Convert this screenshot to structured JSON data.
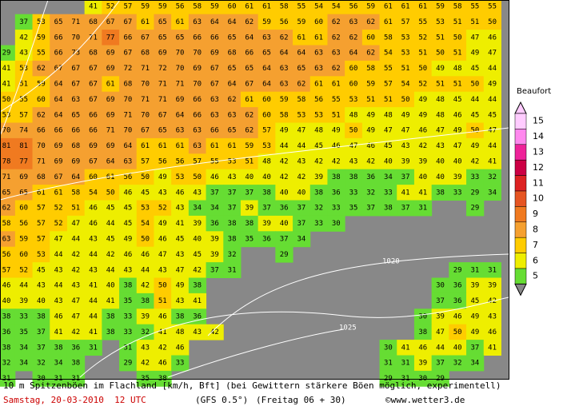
{
  "map": {
    "grid": [
      [
        null,
        null,
        null,
        null,
        null,
        41,
        52,
        57,
        59,
        59,
        56,
        58,
        59,
        60,
        61,
        61,
        58,
        55,
        54,
        54,
        56,
        59,
        61,
        61,
        61,
        59,
        58,
        55,
        55
      ],
      [
        null,
        37,
        53,
        65,
        71,
        68,
        67,
        67,
        61,
        65,
        61,
        63,
        64,
        64,
        62,
        59,
        56,
        59,
        60,
        62,
        63,
        62,
        61,
        57,
        55,
        53,
        51,
        51,
        50
      ],
      [
        null,
        42,
        59,
        66,
        70,
        71,
        77,
        66,
        67,
        65,
        65,
        66,
        66,
        65,
        64,
        63,
        62,
        61,
        61,
        62,
        62,
        60,
        58,
        53,
        52,
        51,
        50,
        47,
        46
      ],
      [
        29,
        43,
        55,
        66,
        73,
        68,
        69,
        67,
        68,
        69,
        70,
        70,
        69,
        68,
        66,
        65,
        64,
        64,
        63,
        63,
        64,
        62,
        54,
        53,
        51,
        50,
        51,
        49,
        47
      ],
      [
        41,
        53,
        62,
        67,
        67,
        67,
        69,
        72,
        71,
        72,
        70,
        69,
        67,
        65,
        65,
        64,
        63,
        65,
        63,
        62,
        60,
        58,
        55,
        51,
        50,
        49,
        48,
        45,
        44
      ],
      [
        41,
        51,
        59,
        64,
        67,
        67,
        61,
        68,
        70,
        71,
        71,
        70,
        67,
        64,
        67,
        64,
        63,
        62,
        61,
        61,
        60,
        59,
        57,
        54,
        52,
        51,
        51,
        50,
        49
      ],
      [
        50,
        55,
        60,
        64,
        63,
        67,
        69,
        70,
        71,
        71,
        69,
        66,
        63,
        62,
        61,
        60,
        59,
        58,
        56,
        55,
        53,
        51,
        51,
        50,
        49,
        48,
        45,
        44,
        44
      ],
      [
        53,
        57,
        62,
        64,
        65,
        66,
        69,
        71,
        70,
        67,
        64,
        66,
        63,
        63,
        62,
        60,
        58,
        53,
        53,
        51,
        48,
        49,
        48,
        49,
        49,
        48,
        46,
        45,
        45
      ],
      [
        70,
        74,
        66,
        66,
        66,
        66,
        71,
        70,
        67,
        65,
        63,
        63,
        66,
        65,
        62,
        57,
        49,
        47,
        48,
        49,
        50,
        49,
        47,
        47,
        46,
        47,
        49,
        50,
        47
      ],
      [
        81,
        81,
        70,
        69,
        68,
        69,
        69,
        64,
        61,
        61,
        61,
        63,
        61,
        61,
        59,
        53,
        44,
        44,
        45,
        46,
        47,
        46,
        45,
        43,
        42,
        43,
        47,
        49,
        44
      ],
      [
        78,
        77,
        71,
        69,
        69,
        67,
        64,
        63,
        57,
        56,
        56,
        57,
        55,
        53,
        51,
        48,
        42,
        43,
        42,
        42,
        43,
        42,
        40,
        39,
        39,
        40,
        40,
        42,
        41
      ],
      [
        71,
        69,
        68,
        67,
        64,
        60,
        61,
        56,
        50,
        49,
        53,
        50,
        46,
        43,
        40,
        40,
        42,
        42,
        39,
        38,
        38,
        36,
        34,
        37,
        40,
        40,
        39,
        33,
        32
      ],
      [
        65,
        65,
        61,
        61,
        58,
        54,
        50,
        46,
        45,
        43,
        46,
        43,
        37,
        37,
        37,
        38,
        40,
        40,
        38,
        36,
        33,
        32,
        33,
        41,
        41,
        38,
        33,
        29,
        34
      ],
      [
        62,
        60,
        57,
        52,
        51,
        46,
        45,
        45,
        53,
        52,
        43,
        34,
        34,
        37,
        39,
        37,
        36,
        37,
        32,
        33,
        35,
        37,
        38,
        37,
        31,
        null,
        null,
        29,
        null
      ],
      [
        58,
        56,
        57,
        52,
        47,
        46,
        44,
        45,
        54,
        49,
        41,
        39,
        36,
        38,
        38,
        39,
        40,
        37,
        33,
        30,
        null,
        null,
        null,
        null,
        null,
        null,
        null,
        null,
        null
      ],
      [
        63,
        59,
        57,
        47,
        44,
        43,
        45,
        49,
        50,
        46,
        45,
        40,
        39,
        38,
        35,
        36,
        37,
        34,
        null,
        null,
        null,
        null,
        null,
        null,
        null,
        null,
        null,
        null,
        null
      ],
      [
        56,
        60,
        53,
        44,
        42,
        44,
        42,
        46,
        46,
        47,
        43,
        45,
        39,
        32,
        null,
        null,
        29,
        null,
        null,
        null,
        null,
        null,
        null,
        null,
        null,
        null,
        null,
        null,
        null
      ],
      [
        57,
        52,
        45,
        43,
        42,
        43,
        44,
        43,
        44,
        43,
        47,
        42,
        37,
        31,
        null,
        null,
        null,
        null,
        null,
        null,
        null,
        null,
        null,
        null,
        null,
        null,
        29,
        31,
        31
      ],
      [
        46,
        44,
        43,
        44,
        43,
        41,
        40,
        38,
        42,
        50,
        49,
        38,
        null,
        null,
        null,
        null,
        null,
        null,
        null,
        null,
        null,
        null,
        null,
        null,
        null,
        30,
        36,
        39,
        39
      ],
      [
        40,
        39,
        40,
        43,
        47,
        44,
        41,
        35,
        38,
        51,
        43,
        41,
        null,
        null,
        null,
        null,
        null,
        null,
        null,
        null,
        null,
        null,
        null,
        null,
        null,
        37,
        36,
        45,
        42
      ],
      [
        38,
        33,
        38,
        46,
        47,
        44,
        38,
        33,
        39,
        46,
        38,
        36,
        null,
        null,
        null,
        null,
        null,
        null,
        null,
        null,
        null,
        null,
        null,
        null,
        30,
        39,
        46,
        49,
        43
      ],
      [
        36,
        35,
        37,
        41,
        42,
        41,
        38,
        33,
        32,
        41,
        48,
        43,
        42,
        null,
        null,
        null,
        null,
        null,
        null,
        null,
        null,
        null,
        null,
        null,
        38,
        47,
        50,
        49,
        46
      ],
      [
        38,
        34,
        37,
        38,
        36,
        31,
        null,
        31,
        43,
        42,
        46,
        null,
        null,
        null,
        null,
        null,
        null,
        null,
        null,
        null,
        null,
        null,
        30,
        41,
        46,
        44,
        40,
        37,
        41
      ],
      [
        32,
        34,
        32,
        34,
        38,
        null,
        null,
        29,
        42,
        46,
        33,
        null,
        null,
        null,
        null,
        null,
        null,
        null,
        null,
        null,
        null,
        null,
        31,
        31,
        39,
        37,
        32,
        34,
        null
      ],
      [
        31,
        null,
        30,
        31,
        31,
        null,
        null,
        null,
        35,
        38,
        null,
        null,
        null,
        null,
        null,
        null,
        null,
        null,
        null,
        null,
        null,
        null,
        29,
        31,
        30,
        29,
        null,
        null,
        null
      ]
    ],
    "isobars": [
      "1020",
      "1025"
    ]
  },
  "legend": {
    "title": "Beaufort",
    "levels": [
      {
        "level": 15,
        "color": "#ffccff"
      },
      {
        "level": 14,
        "color": "#ff88ee"
      },
      {
        "level": 13,
        "color": "#ee2299"
      },
      {
        "level": 12,
        "color": "#cc0044"
      },
      {
        "level": 11,
        "color": "#dd2222"
      },
      {
        "level": 10,
        "color": "#e65522"
      },
      {
        "level": 9,
        "color": "#f07a20"
      },
      {
        "level": 8,
        "color": "#f5a030"
      },
      {
        "level": 7,
        "color": "#ffcc00"
      },
      {
        "level": 6,
        "color": "#eeee00"
      },
      {
        "level": 5,
        "color": "#66dd33"
      }
    ]
  },
  "footer": {
    "line1": "10 m Spitzenböen im Flachland [km/h, Bft] (bei Gewittern stärkere Böen möglich, experimentell)",
    "date": "Samstag, 20-03-2010  12 UTC",
    "model": "(GFS 0.5°)",
    "run": "(Freitag 06 + 30)",
    "copyright": "©www.wetter3.de"
  }
}
